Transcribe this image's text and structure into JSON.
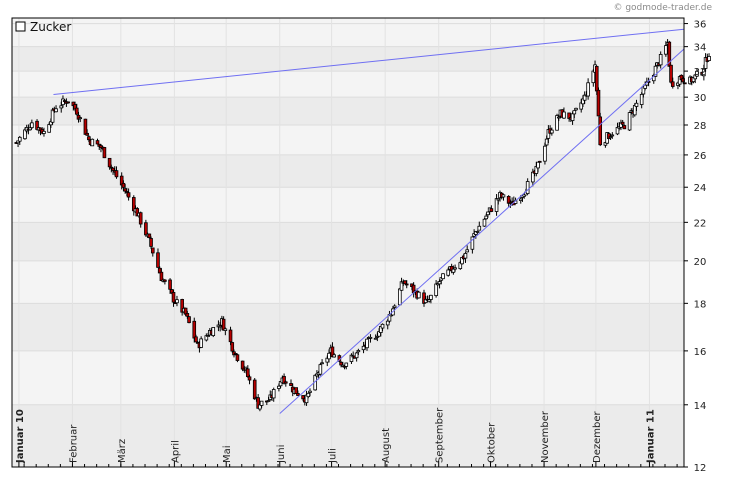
{
  "credit": "© godmode-trader.de",
  "chart_data": {
    "type": "candlestick",
    "title": "",
    "legend": {
      "label": "Zucker",
      "placement": "top-left"
    },
    "yscale": "log",
    "ylim": [
      12,
      36.5
    ],
    "yticks": [
      12,
      14,
      16,
      18,
      20,
      22,
      24,
      26,
      28,
      30,
      32,
      34,
      36
    ],
    "xlim": [
      "2009-12-28",
      "2011-01-21"
    ],
    "month_labels": [
      {
        "label": "Januar 10",
        "date": "2010-01-01",
        "bold": true
      },
      {
        "label": "Februar",
        "date": "2010-02-01"
      },
      {
        "label": "März",
        "date": "2010-03-01"
      },
      {
        "label": "April",
        "date": "2010-04-01"
      },
      {
        "label": "Mai",
        "date": "2010-05-01"
      },
      {
        "label": "Juni",
        "date": "2010-06-01"
      },
      {
        "label": "Juli",
        "date": "2010-07-01"
      },
      {
        "label": "August",
        "date": "2010-08-01"
      },
      {
        "label": "September",
        "date": "2010-09-01"
      },
      {
        "label": "Oktober",
        "date": "2010-10-01"
      },
      {
        "label": "November",
        "date": "2010-11-01"
      },
      {
        "label": "Dezember",
        "date": "2010-12-01"
      },
      {
        "label": "Januar 11",
        "date": "2011-01-01",
        "bold": true
      }
    ],
    "price_path": [
      [
        "2009-12-30",
        26.8
      ],
      [
        "2010-01-08",
        28.2
      ],
      [
        "2010-01-15",
        27.5
      ],
      [
        "2010-01-22",
        29.3
      ],
      [
        "2010-01-29",
        29.8
      ],
      [
        "2010-02-03",
        29.0
      ],
      [
        "2010-02-10",
        27.0
      ],
      [
        "2010-02-17",
        26.5
      ],
      [
        "2010-02-24",
        25.0
      ],
      [
        "2010-03-03",
        23.8
      ],
      [
        "2010-03-10",
        22.5
      ],
      [
        "2010-03-17",
        21.0
      ],
      [
        "2010-03-24",
        19.2
      ],
      [
        "2010-03-31",
        18.2
      ],
      [
        "2010-04-07",
        17.5
      ],
      [
        "2010-04-14",
        16.2
      ],
      [
        "2010-04-21",
        16.8
      ],
      [
        "2010-04-28",
        17.2
      ],
      [
        "2010-05-05",
        16.0
      ],
      [
        "2010-05-12",
        15.2
      ],
      [
        "2010-05-19",
        14.0
      ],
      [
        "2010-05-26",
        14.2
      ],
      [
        "2010-06-02",
        15.0
      ],
      [
        "2010-06-09",
        14.5
      ],
      [
        "2010-06-16",
        14.2
      ],
      [
        "2010-06-23",
        15.2
      ],
      [
        "2010-06-30",
        16.0
      ],
      [
        "2010-07-07",
        15.5
      ],
      [
        "2010-07-14",
        15.8
      ],
      [
        "2010-07-21",
        16.3
      ],
      [
        "2010-07-28",
        16.8
      ],
      [
        "2010-08-04",
        17.6
      ],
      [
        "2010-08-11",
        19.0
      ],
      [
        "2010-08-18",
        18.5
      ],
      [
        "2010-08-25",
        18.0
      ],
      [
        "2010-09-01",
        19.0
      ],
      [
        "2010-09-08",
        19.6
      ],
      [
        "2010-09-15",
        20.2
      ],
      [
        "2010-09-22",
        21.5
      ],
      [
        "2010-09-29",
        22.5
      ],
      [
        "2010-10-06",
        23.5
      ],
      [
        "2010-10-13",
        23.0
      ],
      [
        "2010-10-20",
        23.8
      ],
      [
        "2010-10-27",
        25.0
      ],
      [
        "2010-11-03",
        27.5
      ],
      [
        "2010-11-10",
        28.8
      ],
      [
        "2010-11-17",
        28.5
      ],
      [
        "2010-11-24",
        30.0
      ],
      [
        "2010-11-30",
        32.5
      ],
      [
        "2010-12-03",
        26.8
      ],
      [
        "2010-12-10",
        27.5
      ],
      [
        "2010-12-17",
        28.0
      ],
      [
        "2010-12-24",
        29.5
      ],
      [
        "2010-12-31",
        31.2
      ],
      [
        "2011-01-07",
        33.0
      ],
      [
        "2011-01-11",
        34.3
      ],
      [
        "2011-01-13",
        31.0
      ],
      [
        "2011-01-18",
        31.5
      ],
      [
        "2011-01-24",
        31.2
      ],
      [
        "2011-01-31",
        32.0
      ],
      [
        "2011-02-04",
        33.5
      ]
    ],
    "trendlines": [
      {
        "name": "upper-resistance",
        "from": [
          "2010-01-21",
          30.2
        ],
        "to": [
          "2011-02-14",
          35.5
        ],
        "color": "#6f6ff2"
      },
      {
        "name": "lower-support",
        "from": [
          "2010-06-01",
          13.7
        ],
        "to": [
          "2011-02-14",
          33.8
        ],
        "color": "#6f6ff2"
      }
    ],
    "colors": {
      "up_body": "#ffffff",
      "down_body": "#b80000",
      "outline": "#000000"
    },
    "grid": true
  }
}
